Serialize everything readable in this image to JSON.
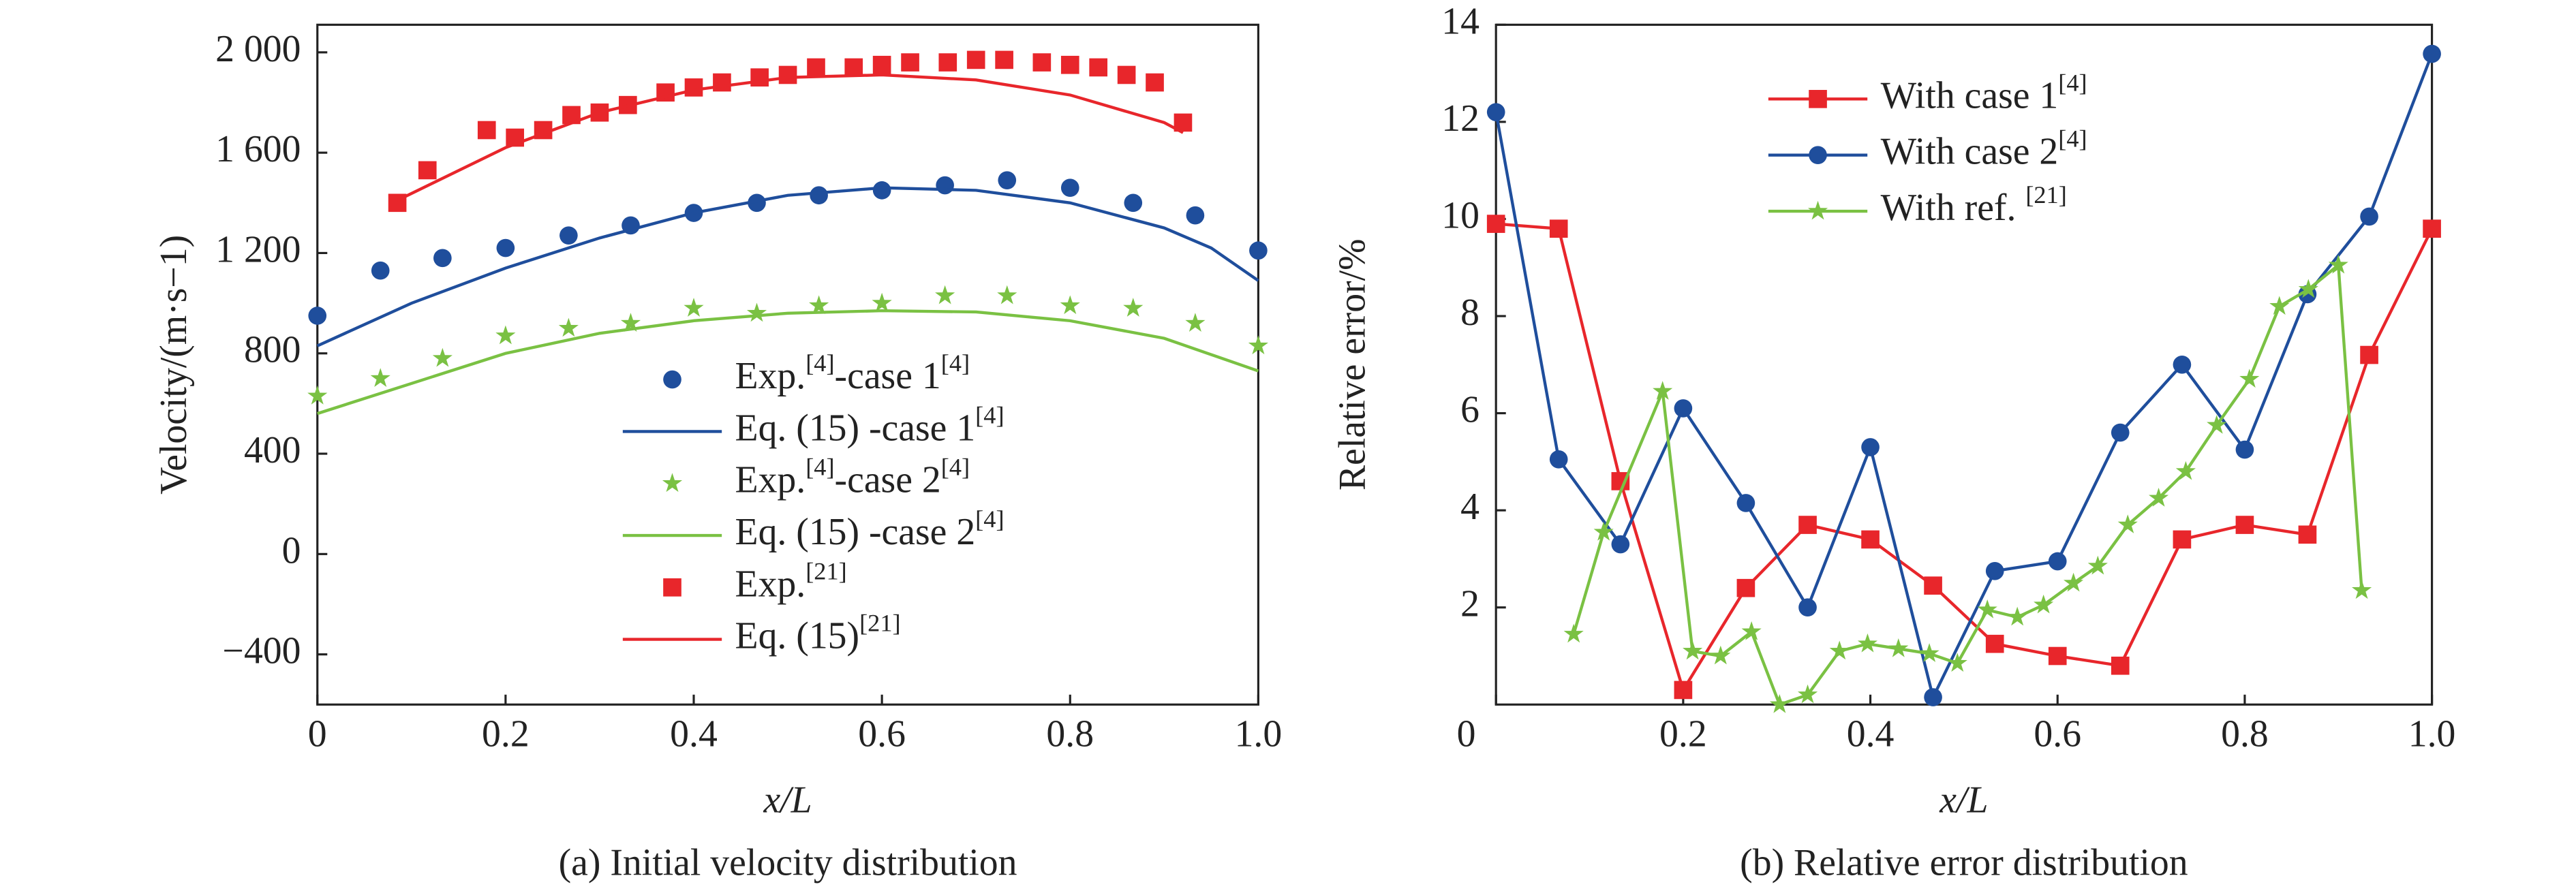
{
  "chart_data": [
    {
      "type": "scatter_line",
      "title": "(a) Initial velocity distribution",
      "x_label": "x/L",
      "y_label": "Velocity/(m·s−1)",
      "xlim": [
        0,
        1
      ],
      "xticks": [
        0,
        0.2,
        0.4,
        0.6,
        0.8,
        {
          "value": 1,
          "label": "1.0"
        }
      ],
      "ylim": [
        -600,
        2110
      ],
      "yticks": [
        {
          "value": -400,
          "label": "−400"
        },
        0,
        400,
        800,
        {
          "value": 1200,
          "label": "1 200"
        },
        {
          "value": 1600,
          "label": "1 600"
        },
        {
          "value": 2000,
          "label": "2 000"
        }
      ],
      "legend": "lower right",
      "series": [
        {
          "name": "Exp.[4]-case 1[4]",
          "color": "#1f4e9c",
          "marker": "circle",
          "line": false,
          "x": [
            0,
            0.067,
            0.133,
            0.2,
            0.267,
            0.333,
            0.4,
            0.467,
            0.533,
            0.6,
            0.667,
            0.733,
            0.8,
            0.867,
            0.933,
            1
          ],
          "values": [
            950,
            1130,
            1180,
            1220,
            1270,
            1310,
            1360,
            1400,
            1430,
            1450,
            1470,
            1490,
            1460,
            1400,
            1350,
            1210
          ]
        },
        {
          "name": "Eq. (15) -case 1[4]",
          "color": "#1f4e9c",
          "marker": null,
          "line": true,
          "x": [
            0,
            0.1,
            0.2,
            0.3,
            0.4,
            0.5,
            0.6,
            0.7,
            0.8,
            0.9,
            0.95,
            1
          ],
          "values": [
            830,
            1000,
            1140,
            1260,
            1360,
            1430,
            1460,
            1450,
            1400,
            1300,
            1220,
            1090
          ]
        },
        {
          "name": "Exp.[4]-case 2[4]",
          "color": "#7ac143",
          "marker": "star",
          "line": false,
          "x": [
            0,
            0.067,
            0.133,
            0.2,
            0.267,
            0.333,
            0.4,
            0.467,
            0.533,
            0.6,
            0.667,
            0.733,
            0.8,
            0.867,
            0.933,
            1
          ],
          "values": [
            630,
            700,
            780,
            870,
            900,
            920,
            980,
            960,
            990,
            1000,
            1030,
            1030,
            990,
            980,
            920,
            830
          ]
        },
        {
          "name": "Eq. (15) -case 2[4]",
          "color": "#7ac143",
          "marker": null,
          "line": true,
          "x": [
            0,
            0.1,
            0.2,
            0.3,
            0.4,
            0.5,
            0.6,
            0.7,
            0.8,
            0.9,
            1
          ],
          "values": [
            560,
            680,
            800,
            880,
            930,
            960,
            970,
            965,
            930,
            860,
            730
          ]
        },
        {
          "name": "Exp.[21]",
          "color": "#e8262b",
          "marker": "square",
          "line": false,
          "x": [
            0.085,
            0.117,
            0.18,
            0.21,
            0.24,
            0.27,
            0.3,
            0.33,
            0.37,
            0.4,
            0.43,
            0.47,
            0.5,
            0.53,
            0.57,
            0.6,
            0.63,
            0.67,
            0.7,
            0.73,
            0.77,
            0.8,
            0.83,
            0.86,
            0.89,
            0.92
          ],
          "values": [
            1400,
            1530,
            1690,
            1660,
            1690,
            1750,
            1760,
            1790,
            1840,
            1860,
            1880,
            1900,
            1910,
            1940,
            1940,
            1950,
            1960,
            1960,
            1970,
            1970,
            1960,
            1950,
            1940,
            1910,
            1880,
            1720
          ]
        },
        {
          "name": "Eq. (15)[21]",
          "color": "#e8262b",
          "marker": null,
          "line": true,
          "x": [
            0.085,
            0.2,
            0.3,
            0.4,
            0.5,
            0.6,
            0.7,
            0.8,
            0.9,
            0.92
          ],
          "values": [
            1410,
            1620,
            1760,
            1850,
            1900,
            1910,
            1890,
            1830,
            1720,
            1680
          ]
        }
      ]
    },
    {
      "type": "scatter_line",
      "title": "(b) Relative error distribution",
      "x_label": "x/L",
      "y_label": "Relative error/%",
      "xlim": [
        0,
        1
      ],
      "xticks": [
        0,
        0.2,
        0.4,
        0.6,
        0.8,
        {
          "value": 1,
          "label": "1.0"
        }
      ],
      "ylim": [
        0,
        14
      ],
      "yticks": [
        2,
        4,
        6,
        8,
        10,
        12,
        14
      ],
      "legend": "upper center",
      "series": [
        {
          "name": "With case 1[4]",
          "color": "#e8262b",
          "marker": "square",
          "line": true,
          "x": [
            0,
            0.067,
            0.133,
            0.2,
            0.267,
            0.333,
            0.4,
            0.467,
            0.533,
            0.6,
            0.667,
            0.733,
            0.8,
            0.867,
            0.933,
            1
          ],
          "values": [
            9.9,
            9.8,
            4.6,
            0.3,
            2.4,
            3.7,
            3.4,
            2.45,
            1.25,
            1.0,
            0.8,
            3.4,
            3.7,
            3.5,
            7.2,
            9.8
          ]
        },
        {
          "name": "With case 2[4]",
          "color": "#1f4e9c",
          "marker": "circle",
          "line": true,
          "x": [
            0,
            0.067,
            0.133,
            0.2,
            0.267,
            0.333,
            0.4,
            0.467,
            0.533,
            0.6,
            0.667,
            0.733,
            0.8,
            0.867,
            0.933,
            1
          ],
          "values": [
            12.2,
            5.05,
            3.3,
            6.1,
            4.15,
            2.0,
            5.3,
            0.15,
            2.75,
            2.95,
            5.6,
            7.0,
            5.25,
            8.45,
            10.05,
            13.4
          ]
        },
        {
          "name": "With ref. [21]",
          "color": "#7ac143",
          "marker": "star",
          "line": true,
          "x": [
            0.083,
            0.115,
            0.178,
            0.21,
            0.24,
            0.273,
            0.303,
            0.333,
            0.367,
            0.397,
            0.43,
            0.463,
            0.493,
            0.525,
            0.557,
            0.585,
            0.617,
            0.643,
            0.675,
            0.708,
            0.737,
            0.77,
            0.805,
            0.837,
            0.868,
            0.9,
            0.925
          ],
          "values": [
            1.45,
            3.55,
            6.45,
            1.1,
            1.0,
            1.5,
            0.0,
            0.2,
            1.1,
            1.25,
            1.15,
            1.05,
            0.85,
            1.95,
            1.8,
            2.05,
            2.5,
            2.85,
            3.7,
            4.25,
            4.8,
            5.75,
            6.7,
            8.2,
            8.55,
            9.05,
            2.35
          ]
        }
      ]
    }
  ]
}
